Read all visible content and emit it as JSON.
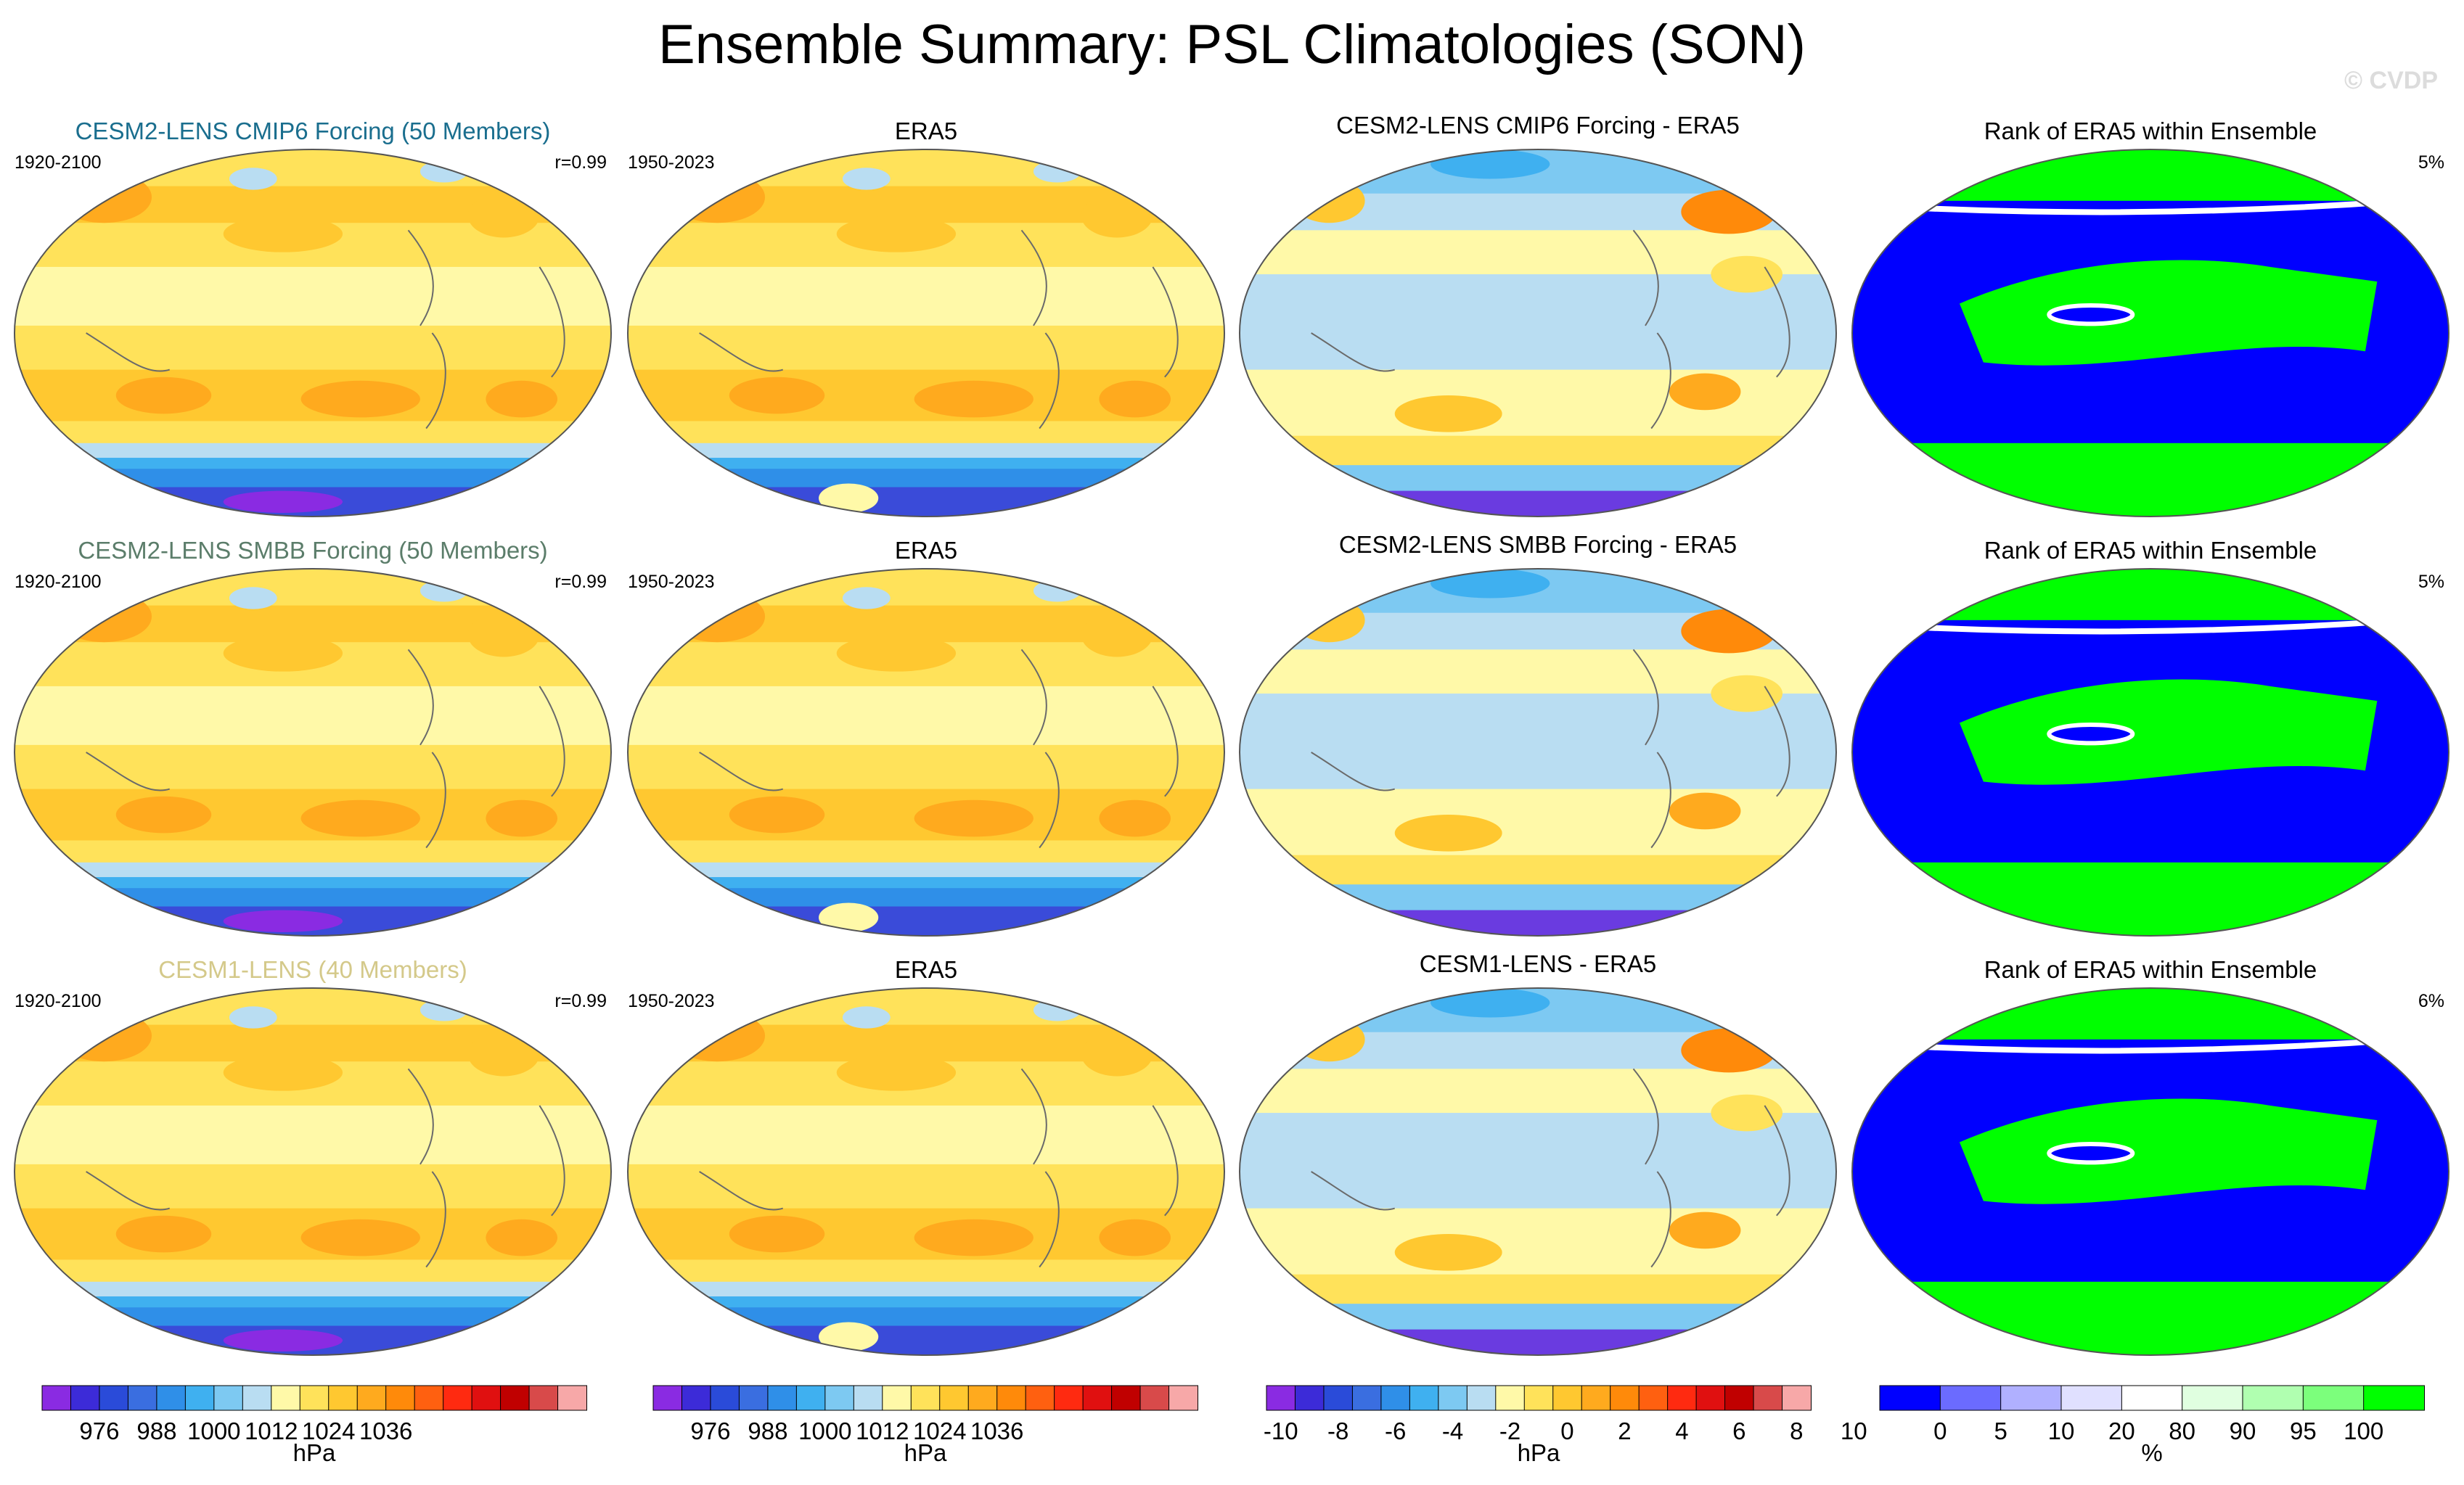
{
  "title": "Ensemble Summary: PSL Climatologies (SON)",
  "watermark": "© CVDP",
  "colors": {
    "row1_title": "#1a6e8e",
    "row2_title": "#5b7d6a",
    "row3_title": "#d4c98a",
    "psl_scale": [
      "#8a2be2",
      "#3c2bd8",
      "#2a4bd9",
      "#3a6ee0",
      "#2f8fe8",
      "#3fb0f0",
      "#7dc9f2",
      "#b9ddf2",
      "#fff9a8",
      "#ffe25a",
      "#ffc830",
      "#ffaa1e",
      "#ff8a0a",
      "#ff6010",
      "#ff2a10",
      "#e01010",
      "#c00000",
      "#d84a4a",
      "#f7a8a8"
    ],
    "diff_scale": [
      "#8a2be2",
      "#3c2bd8",
      "#2a4bd9",
      "#3a6ee0",
      "#2f8fe8",
      "#3fb0f0",
      "#7dc9f2",
      "#b9ddf2",
      "#fff9a8",
      "#ffe25a",
      "#ffc830",
      "#ffaa1e",
      "#ff8a0a",
      "#ff6010",
      "#ff2a10",
      "#e01010",
      "#c00000",
      "#d84a4a",
      "#f7a8a8"
    ],
    "rank_scale": [
      "#0000ff",
      "#6b6bff",
      "#b0b0ff",
      "#e0e0ff",
      "#ffffff",
      "#e0ffe0",
      "#b0ffb0",
      "#7cff7c",
      "#00ff00"
    ]
  },
  "rows": [
    {
      "model_title": "CESM2-LENS CMIP6 Forcing (50 Members)",
      "model_years": "1920-2100",
      "model_r": "r=0.99",
      "era_title": "ERA5",
      "era_years": "1950-2023",
      "diff_title": "CESM2-LENS CMIP6 Forcing - ERA5",
      "rank_title": "Rank of ERA5 within Ensemble",
      "rank_pct": "5%"
    },
    {
      "model_title": "CESM2-LENS SMBB Forcing (50 Members)",
      "model_years": "1920-2100",
      "model_r": "r=0.99",
      "era_title": "ERA5",
      "era_years": "1950-2023",
      "diff_title": "CESM2-LENS SMBB Forcing - ERA5",
      "rank_title": "Rank of ERA5 within Ensemble",
      "rank_pct": "5%"
    },
    {
      "model_title": "CESM1-LENS (40 Members)",
      "model_years": "1920-2100",
      "model_r": "r=0.99",
      "era_title": "ERA5",
      "era_years": "1950-2023",
      "diff_title": "CESM1-LENS - ERA5",
      "rank_title": "Rank of ERA5 within Ensemble",
      "rank_pct": "6%"
    }
  ],
  "colorbars": [
    {
      "ticks": [
        "976",
        "988",
        "1000",
        "1012",
        "1024",
        "1036"
      ],
      "unit": "hPa"
    },
    {
      "ticks": [
        "976",
        "988",
        "1000",
        "1012",
        "1024",
        "1036"
      ],
      "unit": "hPa"
    },
    {
      "ticks": [
        "-10",
        "-8",
        "-6",
        "-4",
        "-2",
        "0",
        "2",
        "4",
        "6",
        "8",
        "10"
      ],
      "unit": "hPa"
    },
    {
      "ticks": [
        "0",
        "5",
        "10",
        "20",
        "80",
        "90",
        "95",
        "100"
      ],
      "unit": "%"
    }
  ],
  "chart_data": {
    "type": "heatmap",
    "title": "Ensemble Summary: PSL Climatologies (SON)",
    "panels_per_row": [
      "model climatology",
      "ERA5 climatology",
      "model minus ERA5",
      "rank of ERA5 within ensemble"
    ],
    "psl_colorbar_ticks_hPa": [
      976,
      988,
      1000,
      1012,
      1024,
      1036
    ],
    "diff_colorbar_ticks_hPa": [
      -10,
      -8,
      -6,
      -4,
      -2,
      0,
      2,
      4,
      6,
      8,
      10
    ],
    "rank_colorbar_ticks_percent": [
      0,
      5,
      10,
      20,
      80,
      90,
      95,
      100
    ],
    "pattern_correlations": [
      0.99,
      0.99,
      0.99
    ],
    "rank_extreme_percent": [
      5,
      5,
      6
    ],
    "grid": false
  }
}
